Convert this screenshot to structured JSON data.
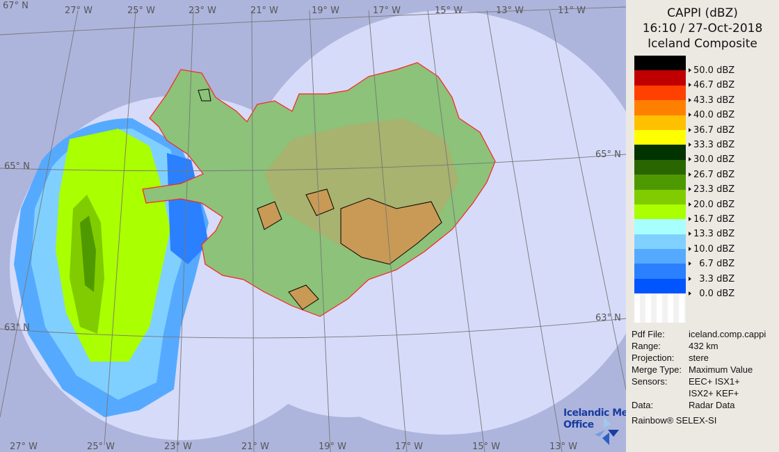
{
  "legend": {
    "title_line1": "CAPPI (dBZ)",
    "title_line2": "16:10 / 27-Oct-2018",
    "title_line3": "Iceland Composite",
    "colors": [
      "#000000",
      "#c00000",
      "#ff4000",
      "#ff8000",
      "#ffc000",
      "#ffff00",
      "#003300",
      "#2a6600",
      "#4f9900",
      "#80cc00",
      "#aaff00",
      "#a8ffff",
      "#80d0ff",
      "#55aaff",
      "#2b80ff",
      "#0055ff",
      "#ffffff"
    ],
    "labels": [
      "50.0 dBZ",
      "46.7 dBZ",
      "43.3 dBZ",
      "40.0 dBZ",
      "36.7 dBZ",
      "33.3 dBZ",
      "30.0 dBZ",
      "26.7 dBZ",
      "23.3 dBZ",
      "20.0 dBZ",
      "16.7 dBZ",
      "13.3 dBZ",
      "10.0 dBZ",
      "  6.7 dBZ",
      "  3.3 dBZ",
      "  0.0 dBZ"
    ]
  },
  "info": [
    {
      "key": "Pdf File:",
      "value": "iceland.comp.cappi"
    },
    {
      "key": "Range:",
      "value": "432 km"
    },
    {
      "key": "Projection:",
      "value": "stere"
    },
    {
      "key": "Merge Type:",
      "value": "Maximum Value"
    },
    {
      "key": "Sensors:",
      "value": "EEC+ ISX1+"
    },
    {
      "key": "",
      "value": "ISX2+ KEF+"
    },
    {
      "key": "Data:",
      "value": "Radar Data"
    }
  ],
  "software": "Rainbow®  SELEX-SI",
  "logo": {
    "line1": "Icelandic Met",
    "line2": "Office"
  },
  "graticule": {
    "top_lon": [
      "27° W",
      "25° W",
      "23° W",
      "21° W",
      "19° W",
      "17° W",
      "15° W",
      "13° W",
      "11° W"
    ],
    "bottom_lon": [
      "27° W",
      "25° W",
      "23° W",
      "21° W",
      "19° W",
      "17° W",
      "15° W",
      "13° W"
    ],
    "lat_left": [
      "67° N",
      "65° N",
      "63° N"
    ],
    "lat_right": [
      "65° N",
      "63° N"
    ]
  },
  "colors": {
    "background": "#aeb5dc",
    "coverage": "#d6dbf9",
    "coast": "#ff2020"
  }
}
